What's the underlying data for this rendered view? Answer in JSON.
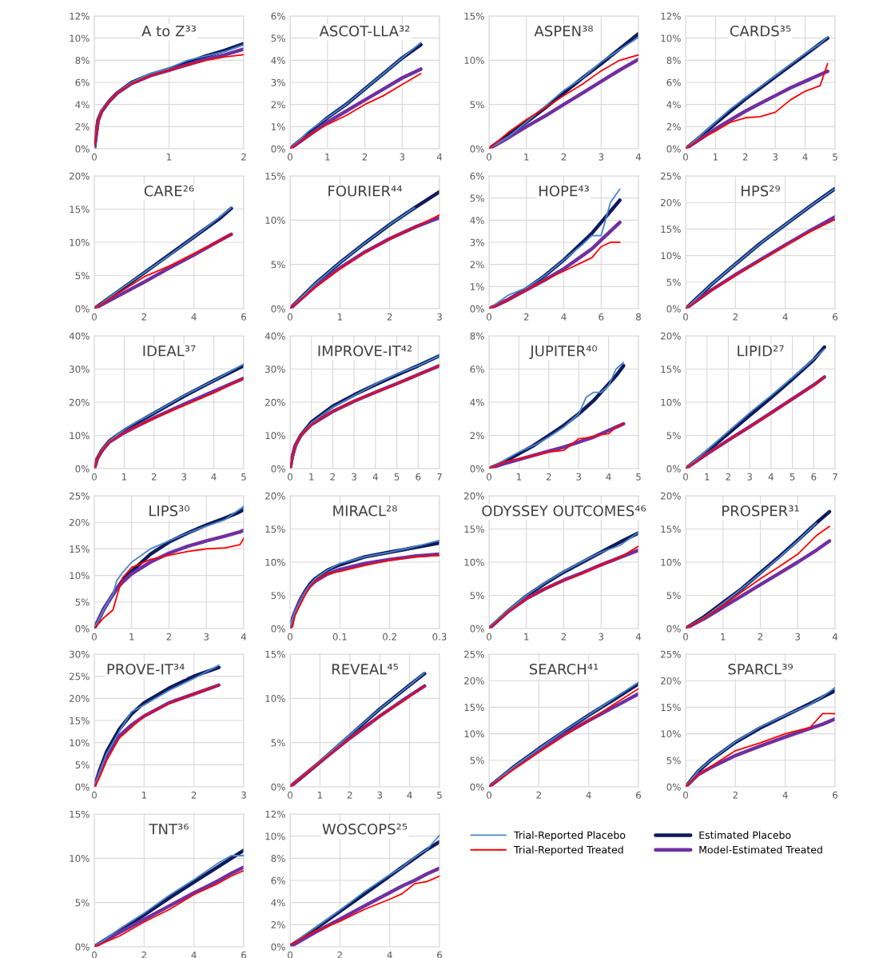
{
  "chart_data": [
    {
      "type": "line",
      "title": "A to Z³³",
      "x": [
        0,
        0.05,
        0.1,
        0.2,
        0.3,
        0.5,
        0.75,
        1,
        1.25,
        1.5,
        1.75,
        2
      ],
      "xlim": [
        0,
        2
      ],
      "xticks": [
        0,
        1,
        2
      ],
      "ylim": [
        0,
        12
      ],
      "yticks": [
        {
          "value": 0,
          "label": "0%"
        },
        {
          "value": 2,
          "label": "2%"
        },
        {
          "value": 4,
          "label": "4%"
        },
        {
          "value": 6,
          "label": "6%"
        },
        {
          "value": 8,
          "label": "8%"
        },
        {
          "value": 10,
          "label": "10%"
        },
        {
          "value": 12,
          "label": "12%"
        }
      ],
      "grid": true,
      "series": [
        {
          "color": "#4a86c8",
          "values": [
            0.5,
            2.5,
            3.5,
            4.3,
            5.0,
            6.0,
            6.8,
            7.3,
            8.0,
            8.4,
            8.8,
            9.4
          ]
        },
        {
          "color": "#ff0000",
          "values": [
            0.3,
            2.5,
            3.4,
            4.3,
            5.0,
            5.9,
            6.6,
            7.1,
            7.6,
            8.0,
            8.3,
            8.5
          ]
        },
        {
          "color": "#0d1a5c",
          "values": [
            0,
            2.6,
            3.4,
            4.3,
            5.0,
            6.0,
            6.7,
            7.2,
            7.8,
            8.4,
            8.9,
            9.5
          ]
        },
        {
          "color": "#7030a0",
          "values": [
            0,
            2.5,
            3.4,
            4.3,
            5.0,
            5.9,
            6.6,
            7.1,
            7.6,
            8.1,
            8.5,
            9.0
          ]
        }
      ]
    },
    {
      "type": "line",
      "title": "ASCOT-LLA³²",
      "x": [
        0,
        0.5,
        1,
        1.5,
        2,
        2.5,
        3,
        3.5
      ],
      "xlim": [
        0,
        4
      ],
      "xticks": [
        0,
        1,
        2,
        3,
        4
      ],
      "ylim": [
        0,
        6
      ],
      "yticks": [
        {
          "value": 0,
          "label": "0%"
        },
        {
          "value": 1,
          "label": "1%"
        },
        {
          "value": 2,
          "label": "2%"
        },
        {
          "value": 3,
          "label": "3%"
        },
        {
          "value": 4,
          "label": "4%"
        },
        {
          "value": 5,
          "label": "5%"
        },
        {
          "value": 6,
          "label": "6%"
        }
      ],
      "grid": true,
      "series": [
        {
          "color": "#4a86c8",
          "values": [
            0,
            0.8,
            1.4,
            2.0,
            2.7,
            3.4,
            4.1,
            4.8
          ]
        },
        {
          "color": "#ff0000",
          "values": [
            0,
            0.6,
            1.1,
            1.5,
            2.0,
            2.4,
            2.9,
            3.4
          ]
        },
        {
          "color": "#0d1a5c",
          "values": [
            0,
            0.7,
            1.4,
            2.0,
            2.7,
            3.4,
            4.1,
            4.7
          ]
        },
        {
          "color": "#7030a0",
          "values": [
            0,
            0.6,
            1.2,
            1.7,
            2.2,
            2.7,
            3.2,
            3.6
          ]
        }
      ]
    },
    {
      "type": "line",
      "title": "ASPEN³⁸",
      "x": [
        0,
        0.5,
        1,
        1.5,
        2,
        2.5,
        3,
        3.5,
        4
      ],
      "xlim": [
        0,
        4
      ],
      "xticks": [
        0,
        1,
        2,
        3,
        4
      ],
      "ylim": [
        0,
        15
      ],
      "yticks": [
        {
          "value": 0,
          "label": "0%"
        },
        {
          "value": 5,
          "label": "5%"
        },
        {
          "value": 10,
          "label": "10%"
        },
        {
          "value": 15,
          "label": "15%"
        }
      ],
      "grid": true,
      "series": [
        {
          "color": "#4a86c8",
          "values": [
            0,
            1.3,
            3.0,
            4.8,
            6.6,
            8.0,
            9.8,
            11.2,
            12.6
          ]
        },
        {
          "color": "#ff0000",
          "values": [
            0,
            1.8,
            3.3,
            4.6,
            6.0,
            7.3,
            8.8,
            10.0,
            10.6
          ]
        },
        {
          "color": "#0d1a5c",
          "values": [
            0,
            1.5,
            3.0,
            4.6,
            6.3,
            8.0,
            9.6,
            11.3,
            13.0
          ]
        },
        {
          "color": "#7030a0",
          "values": [
            0,
            1.2,
            2.5,
            3.7,
            5.0,
            6.3,
            7.6,
            8.9,
            10.1
          ]
        }
      ]
    },
    {
      "type": "line",
      "title": "CARDS³⁵",
      "x": [
        0,
        0.5,
        1,
        1.5,
        2,
        2.5,
        3,
        3.5,
        4,
        4.5,
        4.75
      ],
      "xlim": [
        0,
        5
      ],
      "xticks": [
        0,
        1,
        2,
        3,
        4,
        5
      ],
      "ylim": [
        0,
        12
      ],
      "yticks": [
        {
          "value": 0,
          "label": "0%"
        },
        {
          "value": 2,
          "label": "2%"
        },
        {
          "value": 4,
          "label": "4%"
        },
        {
          "value": 6,
          "label": "6%"
        },
        {
          "value": 8,
          "label": "8%"
        },
        {
          "value": 10,
          "label": "10%"
        },
        {
          "value": 12,
          "label": "12%"
        }
      ],
      "grid": true,
      "series": [
        {
          "color": "#4a86c8",
          "values": [
            0,
            1.2,
            2.4,
            3.6,
            4.6,
            5.6,
            6.6,
            7.6,
            8.6,
            9.5,
            10.1
          ]
        },
        {
          "color": "#ff0000",
          "values": [
            0,
            0.9,
            1.6,
            2.4,
            2.8,
            2.9,
            3.3,
            4.4,
            5.2,
            5.7,
            7.7
          ]
        },
        {
          "color": "#0d1a5c",
          "values": [
            0,
            1.1,
            2.3,
            3.4,
            4.5,
            5.5,
            6.5,
            7.5,
            8.5,
            9.5,
            10.0
          ]
        },
        {
          "color": "#7030a0",
          "values": [
            0,
            0.9,
            1.8,
            2.6,
            3.4,
            4.1,
            4.8,
            5.5,
            6.1,
            6.7,
            7.0
          ]
        }
      ]
    },
    {
      "type": "line",
      "title": "CARE²⁶",
      "x": [
        0,
        1,
        2,
        3,
        4,
        5,
        5.5
      ],
      "xlim": [
        0,
        6
      ],
      "xticks": [
        0,
        2,
        4,
        6
      ],
      "ylim": [
        0,
        20
      ],
      "yticks": [
        {
          "value": 0,
          "label": "0%"
        },
        {
          "value": 5,
          "label": "5%"
        },
        {
          "value": 10,
          "label": "10%"
        },
        {
          "value": 15,
          "label": "15%"
        },
        {
          "value": 20,
          "label": "20%"
        }
      ],
      "grid": true,
      "series": [
        {
          "color": "#4a86c8",
          "values": [
            0,
            2.8,
            5.4,
            8.0,
            10.8,
            13.7,
            15.2
          ]
        },
        {
          "color": "#ff0000",
          "values": [
            0,
            2.4,
            4.8,
            6.4,
            8.3,
            10.2,
            11.2
          ]
        },
        {
          "color": "#0d1a5c",
          "values": [
            0,
            2.7,
            5.4,
            8.1,
            10.8,
            13.5,
            15.1
          ]
        },
        {
          "color": "#7030a0",
          "values": [
            0,
            2.0,
            4.0,
            6.1,
            8.1,
            10.2,
            11.2
          ]
        }
      ]
    },
    {
      "type": "line",
      "title": "FOURIER⁴⁴",
      "x": [
        0,
        0.5,
        1,
        1.5,
        2,
        2.5,
        3
      ],
      "xlim": [
        0,
        3
      ],
      "xticks": [
        0,
        1,
        2,
        3
      ],
      "ylim": [
        0,
        15
      ],
      "yticks": [
        {
          "value": 0,
          "label": "0%"
        },
        {
          "value": 5,
          "label": "5%"
        },
        {
          "value": 10,
          "label": "10%"
        },
        {
          "value": 15,
          "label": "15%"
        }
      ],
      "grid": true,
      "series": [
        {
          "color": "#4a86c8",
          "values": [
            0,
            2.8,
            5.2,
            7.4,
            9.5,
            11.4,
            null
          ]
        },
        {
          "color": "#ff0000",
          "values": [
            0,
            2.4,
            4.5,
            6.3,
            7.9,
            9.2,
            10.6
          ]
        },
        {
          "color": "#0d1a5c",
          "values": [
            0,
            2.8,
            5.2,
            7.4,
            9.5,
            11.4,
            13.2
          ]
        },
        {
          "color": "#7030a0",
          "values": [
            0,
            2.5,
            4.6,
            6.4,
            7.9,
            9.2,
            10.3
          ]
        }
      ]
    },
    {
      "type": "line",
      "title": "HOPE⁴³",
      "x": [
        0,
        1,
        2,
        3,
        4,
        5,
        5.5,
        6,
        6.5,
        7
      ],
      "xlim": [
        0,
        8
      ],
      "xticks": [
        0,
        2,
        4,
        6,
        8
      ],
      "ylim": [
        0,
        6
      ],
      "yticks": [
        {
          "value": 0,
          "label": "0%"
        },
        {
          "value": 1,
          "label": "1%"
        },
        {
          "value": 2,
          "label": "2%"
        },
        {
          "value": 3,
          "label": "3%"
        },
        {
          "value": 4,
          "label": "4%"
        },
        {
          "value": 5,
          "label": "5%"
        },
        {
          "value": 6,
          "label": "6%"
        }
      ],
      "grid": true,
      "series": [
        {
          "color": "#4a86c8",
          "values": [
            0,
            0.6,
            0.95,
            1.5,
            2.2,
            2.9,
            3.3,
            3.3,
            4.8,
            5.4
          ]
        },
        {
          "color": "#ff0000",
          "values": [
            0,
            0.4,
            0.85,
            1.3,
            1.7,
            2.1,
            2.3,
            2.8,
            3.0,
            3.0
          ]
        },
        {
          "color": "#0d1a5c",
          "values": [
            0,
            0.4,
            0.9,
            1.5,
            2.2,
            3.0,
            3.4,
            3.9,
            4.4,
            4.9
          ]
        },
        {
          "color": "#7030a0",
          "values": [
            0,
            0.4,
            0.85,
            1.3,
            1.8,
            2.4,
            2.7,
            3.1,
            3.5,
            3.9
          ]
        }
      ]
    },
    {
      "type": "line",
      "title": "HPS²⁹",
      "x": [
        0,
        1,
        2,
        3,
        4,
        5,
        6
      ],
      "xlim": [
        0,
        6
      ],
      "xticks": [
        0,
        2,
        4,
        6
      ],
      "ylim": [
        0,
        25
      ],
      "yticks": [
        {
          "value": 0,
          "label": "0%"
        },
        {
          "value": 5,
          "label": "5%"
        },
        {
          "value": 10,
          "label": "10%"
        },
        {
          "value": 15,
          "label": "15%"
        },
        {
          "value": 20,
          "label": "20%"
        },
        {
          "value": 25,
          "label": "25%"
        }
      ],
      "grid": true,
      "series": [
        {
          "color": "#4a86c8",
          "values": [
            0,
            4.4,
            8.4,
            12.3,
            15.8,
            19.3,
            22.6
          ]
        },
        {
          "color": "#ff0000",
          "values": [
            0,
            3.3,
            6.3,
            9.0,
            11.8,
            14.5,
            16.8
          ]
        },
        {
          "color": "#0d1a5c",
          "values": [
            0,
            4.4,
            8.4,
            12.3,
            15.8,
            19.3,
            22.6
          ]
        },
        {
          "color": "#7030a0",
          "values": [
            0,
            3.4,
            6.4,
            9.2,
            12.0,
            14.7,
            17.3
          ]
        }
      ]
    },
    {
      "type": "line",
      "title": "IDEAL³⁷",
      "x": [
        0,
        0.1,
        0.25,
        0.5,
        1,
        1.5,
        2,
        3,
        4,
        5
      ],
      "xlim": [
        0,
        5
      ],
      "xticks": [
        0,
        1,
        2,
        3,
        4,
        5
      ],
      "ylim": [
        0,
        40
      ],
      "yticks": [
        {
          "value": 0,
          "label": "0%"
        },
        {
          "value": 10,
          "label": "10%"
        },
        {
          "value": 20,
          "label": "20%"
        },
        {
          "value": 30,
          "label": "30%"
        },
        {
          "value": 40,
          "label": "40%"
        }
      ],
      "grid": true,
      "series": [
        {
          "color": "#4a86c8",
          "values": [
            0,
            3.0,
            5.5,
            8.3,
            11.8,
            14.5,
            16.8,
            22,
            26.5,
            31.5
          ]
        },
        {
          "color": "#ff0000",
          "values": [
            0,
            3,
            5.3,
            8,
            10.8,
            13.1,
            15.2,
            19.0,
            22.8,
            27.2
          ]
        },
        {
          "color": "#0d1a5c",
          "values": [
            0,
            3.0,
            5.5,
            8.3,
            11.5,
            14.2,
            16.7,
            21.8,
            26.5,
            31.0
          ]
        },
        {
          "color": "#7030a0",
          "values": [
            0,
            3,
            5.3,
            8,
            10.8,
            13.1,
            15.3,
            19.4,
            23.3,
            27.2
          ]
        }
      ]
    },
    {
      "type": "line",
      "title": "IMPROVE-IT⁴²",
      "x": [
        0,
        0.1,
        0.25,
        0.5,
        1,
        2,
        3,
        4,
        5,
        6,
        7
      ],
      "xlim": [
        0,
        7
      ],
      "xticks": [
        0,
        1,
        2,
        3,
        4,
        5,
        6,
        7
      ],
      "ylim": [
        0,
        40
      ],
      "yticks": [
        {
          "value": 0,
          "label": "0%"
        },
        {
          "value": 10,
          "label": "10%"
        },
        {
          "value": 20,
          "label": "20%"
        },
        {
          "value": 30,
          "label": "30%"
        },
        {
          "value": 40,
          "label": "40%"
        }
      ],
      "grid": true,
      "series": [
        {
          "color": "#4a86c8",
          "values": [
            0,
            3.5,
            7,
            10,
            13.8,
            18.5,
            22,
            25.5,
            28.5,
            31,
            34
          ]
        },
        {
          "color": "#ff0000",
          "values": [
            0,
            3.5,
            7,
            10,
            13.3,
            17.3,
            20.4,
            23,
            25.5,
            28.3,
            31.0
          ]
        },
        {
          "color": "#0d1a5c",
          "values": [
            0,
            3.5,
            7,
            10,
            14,
            18.8,
            22.2,
            25.3,
            28.2,
            31,
            34
          ]
        },
        {
          "color": "#7030a0",
          "values": [
            0,
            3.5,
            7,
            10,
            13.3,
            17.2,
            20.3,
            23,
            25.6,
            28.3,
            31.0
          ]
        }
      ]
    },
    {
      "type": "line",
      "title": "JUPITER⁴⁰",
      "x": [
        0,
        0.5,
        1,
        1.5,
        2,
        2.5,
        3,
        3.25,
        3.5,
        3.75,
        4,
        4.25,
        4.5
      ],
      "xlim": [
        0,
        5
      ],
      "xticks": [
        0,
        1,
        2,
        3,
        4,
        5
      ],
      "ylim": [
        0,
        8
      ],
      "yticks": [
        {
          "value": 0,
          "label": "0%"
        },
        {
          "value": 2,
          "label": "2%"
        },
        {
          "value": 4,
          "label": "4%"
        },
        {
          "value": 6,
          "label": "6%"
        },
        {
          "value": 8,
          "label": "8%"
        }
      ],
      "grid": true,
      "series": [
        {
          "color": "#4a86c8",
          "values": [
            0,
            0.5,
            1.0,
            1.4,
            1.9,
            2.5,
            3.3,
            4.3,
            4.6,
            4.6,
            5.0,
            6.0,
            6.4
          ]
        },
        {
          "color": "#ff0000",
          "values": [
            0,
            0.4,
            0.6,
            0.8,
            1.0,
            1.1,
            1.8,
            1.85,
            1.95,
            2.05,
            2.1,
            2.5,
            2.7
          ]
        },
        {
          "color": "#0d1a5c",
          "values": [
            0,
            0.4,
            0.9,
            1.4,
            2.0,
            2.6,
            3.3,
            3.7,
            4.1,
            4.6,
            5.1,
            5.6,
            6.2
          ]
        },
        {
          "color": "#7030a0",
          "values": [
            0,
            0.3,
            0.55,
            0.8,
            1.05,
            1.3,
            1.6,
            1.75,
            1.9,
            2.1,
            2.3,
            2.5,
            2.7
          ]
        }
      ]
    },
    {
      "type": "line",
      "title": "LIPID²⁷",
      "x": [
        0,
        1,
        2,
        3,
        4,
        5,
        6,
        6.5
      ],
      "xlim": [
        0,
        7
      ],
      "xticks": [
        0,
        1,
        2,
        3,
        4,
        5,
        6,
        7
      ],
      "ylim": [
        0,
        20
      ],
      "yticks": [
        {
          "value": 0,
          "label": "0%"
        },
        {
          "value": 5,
          "label": "5%"
        },
        {
          "value": 10,
          "label": "10%"
        },
        {
          "value": 15,
          "label": "15%"
        },
        {
          "value": 20,
          "label": "20%"
        }
      ],
      "grid": true,
      "series": [
        {
          "color": "#4a86c8",
          "values": [
            0,
            2.8,
            5.6,
            8.4,
            11.0,
            13.7,
            16.5,
            18.0
          ]
        },
        {
          "color": "#ff0000",
          "values": [
            0,
            2.2,
            4.3,
            6.3,
            8.3,
            10.5,
            12.5,
            13.8
          ]
        },
        {
          "color": "#0d1a5c",
          "values": [
            0,
            2.6,
            5.3,
            8.0,
            10.7,
            13.5,
            16.4,
            18.3
          ]
        },
        {
          "color": "#7030a0",
          "values": [
            0,
            2.2,
            4.3,
            6.3,
            8.4,
            10.5,
            12.6,
            13.8
          ]
        }
      ]
    },
    {
      "type": "line",
      "title": "LIPS³⁰",
      "x": [
        0,
        0.25,
        0.5,
        0.6,
        0.75,
        1,
        1.5,
        2,
        2.5,
        3,
        3.5,
        3.9,
        4
      ],
      "xlim": [
        0,
        4
      ],
      "xticks": [
        0,
        1,
        2,
        3,
        4
      ],
      "ylim": [
        0,
        25
      ],
      "yticks": [
        {
          "value": 0,
          "label": "0%"
        },
        {
          "value": 5,
          "label": "5%"
        },
        {
          "value": 10,
          "label": "10%"
        },
        {
          "value": 15,
          "label": "15%"
        },
        {
          "value": 20,
          "label": "20%"
        },
        {
          "value": 25,
          "label": "25%"
        }
      ],
      "grid": true,
      "series": [
        {
          "color": "#4a86c8",
          "values": [
            0,
            3.5,
            6.5,
            9,
            10.5,
            12.5,
            15,
            16.5,
            18,
            19.3,
            20.5,
            22.5,
            23.0
          ]
        },
        {
          "color": "#ff0000",
          "values": [
            0,
            2,
            3.5,
            6,
            9.5,
            11.5,
            13,
            13.8,
            14.5,
            15,
            15.2,
            15.8,
            17
          ]
        },
        {
          "color": "#0d1a5c",
          "values": [
            0,
            3.7,
            6.4,
            7.5,
            9,
            10.8,
            14,
            16.3,
            18,
            19.5,
            20.8,
            22,
            22.4
          ]
        },
        {
          "color": "#7030a0",
          "values": [
            0,
            3.5,
            6.5,
            7.5,
            8.7,
            10.3,
            12.5,
            14.2,
            15.5,
            16.5,
            17.4,
            18.2,
            18.5
          ]
        }
      ]
    },
    {
      "type": "line",
      "title": "MIRACL²⁸",
      "x": [
        0,
        0.005,
        0.01,
        0.02,
        0.03,
        0.04,
        0.05,
        0.075,
        0.1,
        0.15,
        0.2,
        0.25,
        0.3
      ],
      "xlim": [
        0,
        0.3
      ],
      "xticks": [
        0,
        0.1,
        0.2,
        0.3
      ],
      "ylim": [
        0,
        20
      ],
      "yticks": [
        {
          "value": 0,
          "label": "0%"
        },
        {
          "value": 5,
          "label": "5%"
        },
        {
          "value": 10,
          "label": "10%"
        },
        {
          "value": 15,
          "label": "15%"
        },
        {
          "value": 20,
          "label": "20%"
        }
      ],
      "grid": true,
      "series": [
        {
          "color": "#4a86c8",
          "values": [
            0,
            1.5,
            2.5,
            4,
            5.4,
            6.6,
            7.5,
            8.8,
            9.8,
            10.8,
            11.5,
            12.3,
            13.3
          ]
        },
        {
          "color": "#ff0000",
          "values": [
            0,
            0.3,
            2,
            3.5,
            5,
            6.3,
            7.2,
            8.3,
            8.6,
            9.5,
            10.3,
            10.8,
            11.0
          ]
        },
        {
          "color": "#0d1a5c",
          "values": [
            0,
            1.5,
            2.5,
            4.3,
            5.6,
            6.7,
            7.5,
            8.8,
            9.6,
            10.8,
            11.5,
            12.2,
            12.9
          ]
        },
        {
          "color": "#7030a0",
          "values": [
            0,
            1.5,
            2.5,
            4.2,
            5.4,
            6.4,
            7.1,
            8.2,
            8.9,
            9.8,
            10.4,
            10.9,
            11.2
          ]
        }
      ]
    },
    {
      "type": "line",
      "title": "ODYSSEY OUTCOMES⁴⁶",
      "x": [
        0,
        0.5,
        1,
        1.5,
        2,
        2.5,
        3,
        3.5,
        4
      ],
      "xlim": [
        0,
        4
      ],
      "xticks": [
        0,
        1,
        2,
        3,
        4
      ],
      "ylim": [
        0,
        20
      ],
      "yticks": [
        {
          "value": 0,
          "label": "0%"
        },
        {
          "value": 5,
          "label": "5%"
        },
        {
          "value": 10,
          "label": "10%"
        },
        {
          "value": 15,
          "label": "15%"
        },
        {
          "value": 20,
          "label": "20%"
        }
      ],
      "grid": true,
      "series": [
        {
          "color": "#4a86c8",
          "values": [
            0.3,
            2.7,
            5.0,
            6.9,
            8.6,
            10.1,
            11.5,
            12.5,
            14.5
          ]
        },
        {
          "color": "#ff0000",
          "values": [
            0,
            2.5,
            4.5,
            6.0,
            7.2,
            8.3,
            9.6,
            10.7,
            12.4
          ]
        },
        {
          "color": "#0d1a5c",
          "values": [
            0,
            2.6,
            4.9,
            6.8,
            8.5,
            10.0,
            11.5,
            13.0,
            14.4
          ]
        },
        {
          "color": "#7030a0",
          "values": [
            0,
            2.5,
            4.5,
            6.0,
            7.3,
            8.4,
            9.6,
            10.7,
            11.8
          ]
        }
      ]
    },
    {
      "type": "line",
      "title": "PROSPER³¹",
      "x": [
        0,
        0.5,
        1,
        1.5,
        2,
        2.5,
        3,
        3.5,
        3.85
      ],
      "xlim": [
        0,
        4
      ],
      "xticks": [
        0,
        1,
        2,
        3,
        4
      ],
      "ylim": [
        0,
        20
      ],
      "yticks": [
        {
          "value": 0,
          "label": "0%"
        },
        {
          "value": 5,
          "label": "5%"
        },
        {
          "value": 10,
          "label": "10%"
        },
        {
          "value": 15,
          "label": "15%"
        },
        {
          "value": 20,
          "label": "20%"
        }
      ],
      "grid": true,
      "series": [
        {
          "color": "#4a86c8",
          "values": [
            0,
            1.7,
            3.8,
            6,
            8.3,
            10.7,
            13.2,
            15.9,
            null
          ]
        },
        {
          "color": "#ff0000",
          "values": [
            0,
            1.6,
            3.5,
            5.5,
            7.5,
            9.3,
            11.2,
            14.0,
            15.4
          ]
        },
        {
          "color": "#0d1a5c",
          "values": [
            0,
            1.8,
            3.9,
            6,
            8.4,
            10.8,
            13.3,
            15.9,
            17.6
          ]
        },
        {
          "color": "#7030a0",
          "values": [
            0,
            1.5,
            3.2,
            4.9,
            6.6,
            8.3,
            10.0,
            11.8,
            13.2
          ]
        }
      ]
    },
    {
      "type": "line",
      "title": "PROVE-IT³⁴",
      "x": [
        0,
        0.1,
        0.25,
        0.5,
        0.75,
        1,
        1.5,
        2,
        2.5
      ],
      "xlim": [
        0,
        3
      ],
      "xticks": [
        0,
        1,
        2,
        3
      ],
      "ylim": [
        0,
        30
      ],
      "yticks": [
        {
          "value": 0,
          "label": "0%"
        },
        {
          "value": 5,
          "label": "5%"
        },
        {
          "value": 10,
          "label": "10%"
        },
        {
          "value": 15,
          "label": "15%"
        },
        {
          "value": 20,
          "label": "20%"
        },
        {
          "value": 25,
          "label": "25%"
        },
        {
          "value": 30,
          "label": "30%"
        }
      ],
      "grid": true,
      "series": [
        {
          "color": "#4a86c8",
          "values": [
            0,
            3,
            7.5,
            12.5,
            17,
            18.5,
            21.8,
            24.5,
            27.5
          ]
        },
        {
          "color": "#ff0000",
          "values": [
            0,
            2,
            6,
            11,
            13.5,
            16,
            18.8,
            21,
            23
          ]
        },
        {
          "color": "#0d1a5c",
          "values": [
            0,
            3.5,
            8,
            13,
            16.5,
            19,
            22.3,
            25,
            27
          ]
        },
        {
          "color": "#7030a0",
          "values": [
            0,
            3,
            7,
            11.5,
            14,
            16,
            19,
            21,
            23
          ]
        }
      ]
    },
    {
      "type": "line",
      "title": "REVEAL⁴⁵",
      "x": [
        0,
        1,
        2,
        3,
        4,
        4.5
      ],
      "xlim": [
        0,
        5
      ],
      "xticks": [
        0,
        1,
        2,
        3,
        4,
        5
      ],
      "ylim": [
        0,
        15
      ],
      "yticks": [
        {
          "value": 0,
          "label": "0%"
        },
        {
          "value": 5,
          "label": "5%"
        },
        {
          "value": 10,
          "label": "10%"
        },
        {
          "value": 15,
          "label": "15%"
        }
      ],
      "grid": true,
      "series": [
        {
          "color": "#4a86c8",
          "values": [
            0,
            2.9,
            5.9,
            8.8,
            11.5,
            12.9
          ]
        },
        {
          "color": "#ff0000",
          "values": [
            0,
            2.8,
            5.5,
            8.0,
            10.2,
            11.4
          ]
        },
        {
          "color": "#0d1a5c",
          "values": [
            0,
            2.8,
            5.8,
            8.8,
            11.5,
            12.8
          ]
        },
        {
          "color": "#7030a0",
          "values": [
            0,
            2.8,
            5.5,
            8.0,
            10.3,
            11.4
          ]
        }
      ]
    },
    {
      "type": "line",
      "title": "SEARCH⁴¹",
      "x": [
        0,
        1,
        2,
        3,
        4,
        5,
        6
      ],
      "xlim": [
        0,
        6
      ],
      "xticks": [
        0,
        2,
        4,
        6
      ],
      "ylim": [
        0,
        25
      ],
      "yticks": [
        {
          "value": 0,
          "label": "0%"
        },
        {
          "value": 5,
          "label": "5%"
        },
        {
          "value": 10,
          "label": "10%"
        },
        {
          "value": 15,
          "label": "15%"
        },
        {
          "value": 20,
          "label": "20%"
        },
        {
          "value": 25,
          "label": "25%"
        }
      ],
      "grid": true,
      "series": [
        {
          "color": "#4a86c8",
          "values": [
            0,
            3.8,
            7.2,
            10.5,
            13.5,
            16.6,
            19.7
          ]
        },
        {
          "color": "#ff0000",
          "values": [
            0,
            3.3,
            6.5,
            9.6,
            12.5,
            15.5,
            18.5
          ]
        },
        {
          "color": "#0d1a5c",
          "values": [
            0,
            3.8,
            7.2,
            10.4,
            13.5,
            16.4,
            19.4
          ]
        },
        {
          "color": "#7030a0",
          "values": [
            0,
            3.6,
            6.8,
            9.8,
            12.5,
            15.0,
            17.5
          ]
        }
      ]
    },
    {
      "type": "line",
      "title": "SPARCL³⁹",
      "x": [
        0,
        0.5,
        1,
        2,
        3,
        4,
        5,
        5.5,
        6
      ],
      "xlim": [
        0,
        6
      ],
      "xticks": [
        0,
        2,
        4,
        6
      ],
      "ylim": [
        0,
        25
      ],
      "yticks": [
        {
          "value": 0,
          "label": "0%"
        },
        {
          "value": 5,
          "label": "5%"
        },
        {
          "value": 10,
          "label": "10%"
        },
        {
          "value": 15,
          "label": "15%"
        },
        {
          "value": 20,
          "label": "20%"
        },
        {
          "value": 25,
          "label": "25%"
        }
      ],
      "grid": true,
      "series": [
        {
          "color": "#4a86c8",
          "values": [
            0,
            3,
            5,
            8.5,
            11.3,
            13.5,
            15.5,
            17,
            18.7
          ]
        },
        {
          "color": "#ff0000",
          "values": [
            0,
            2.3,
            3.8,
            6.8,
            8.3,
            10,
            11.2,
            13.8,
            13.8
          ]
        },
        {
          "color": "#0d1a5c",
          "values": [
            0,
            2.9,
            5,
            8.4,
            11.1,
            13.4,
            15.7,
            16.9,
            18.1
          ]
        },
        {
          "color": "#7030a0",
          "values": [
            0,
            2.3,
            3.6,
            5.9,
            7.7,
            9.4,
            11,
            11.8,
            12.8
          ]
        }
      ]
    },
    {
      "type": "line",
      "title": "TNT³⁶",
      "x": [
        0,
        1,
        2,
        3,
        4,
        5,
        5.5,
        6
      ],
      "xlim": [
        0,
        6
      ],
      "xticks": [
        0,
        2,
        4,
        6
      ],
      "ylim": [
        0,
        15
      ],
      "yticks": [
        {
          "value": 0,
          "label": "0%"
        },
        {
          "value": 5,
          "label": "5%"
        },
        {
          "value": 10,
          "label": "10%"
        },
        {
          "value": 15,
          "label": "15%"
        }
      ],
      "grid": true,
      "series": [
        {
          "color": "#4a86c8",
          "values": [
            0,
            2,
            3.8,
            5.8,
            7.6,
            9.5,
            10.3,
            10.3
          ]
        },
        {
          "color": "#ff0000",
          "values": [
            0,
            1.2,
            2.8,
            4.2,
            5.9,
            7.2,
            8.0,
            8.6
          ]
        },
        {
          "color": "#0d1a5c",
          "values": [
            0,
            1.8,
            3.6,
            5.5,
            7.3,
            9.1,
            10.0,
            10.9
          ]
        },
        {
          "color": "#7030a0",
          "values": [
            0,
            1.6,
            3.1,
            4.6,
            6.1,
            7.5,
            8.3,
            9.0
          ]
        }
      ]
    },
    {
      "type": "line",
      "title": "WOSCOPS²⁵",
      "x": [
        0,
        1,
        2,
        3,
        4,
        4.5,
        5,
        5.5,
        6
      ],
      "xlim": [
        0,
        6
      ],
      "xticks": [
        0,
        2,
        4,
        6
      ],
      "ylim": [
        0,
        12
      ],
      "yticks": [
        {
          "value": 0,
          "label": "0%"
        },
        {
          "value": 2,
          "label": "2%"
        },
        {
          "value": 4,
          "label": "4%"
        },
        {
          "value": 6,
          "label": "6%"
        },
        {
          "value": 8,
          "label": "8%"
        },
        {
          "value": 10,
          "label": "10%"
        },
        {
          "value": 12,
          "label": "12%"
        }
      ],
      "grid": true,
      "legend": "right",
      "series": [
        {
          "name": "Trial-Reported Placebo",
          "color": "#4a86c8",
          "values": [
            0.2,
            1.7,
            3.3,
            5.0,
            6.5,
            7.2,
            8.1,
            8.8,
            10.1
          ]
        },
        {
          "name": "Trial-Reported Treated",
          "color": "#ff0000",
          "values": [
            0.2,
            1.4,
            2.3,
            3.4,
            4.3,
            4.8,
            5.7,
            5.9,
            6.4
          ]
        },
        {
          "name": "Estimated Placebo",
          "color": "#0d1a5c",
          "values": [
            0,
            1.6,
            3.2,
            4.8,
            6.4,
            7.2,
            8.0,
            8.8,
            9.5
          ]
        },
        {
          "name": "Model-Estimated Treated",
          "color": "#7030a0",
          "values": [
            0,
            1.3,
            2.5,
            3.7,
            4.9,
            5.5,
            6.0,
            6.6,
            7.1
          ]
        }
      ]
    }
  ]
}
